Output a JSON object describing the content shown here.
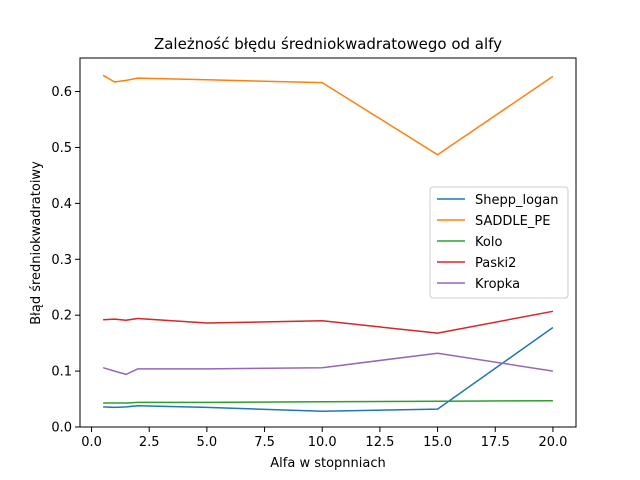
{
  "chart_data": {
    "type": "line",
    "title": "Zależność błędu średniokwadratowego od alfy",
    "xlabel": "Alfa w stopnniach",
    "ylabel": "Błąd średniokwadratoiwy",
    "xlim": [
      -0.5,
      21.0
    ],
    "ylim": [
      0.0,
      0.66
    ],
    "xticks": [
      0.0,
      2.5,
      5.0,
      7.5,
      10.0,
      12.5,
      15.0,
      17.5,
      20.0
    ],
    "xtick_labels": [
      "0.0",
      "2.5",
      "5.0",
      "7.5",
      "10.0",
      "12.5",
      "15.0",
      "17.5",
      "20.0"
    ],
    "yticks": [
      0.0,
      0.1,
      0.2,
      0.3,
      0.4,
      0.5,
      0.6
    ],
    "ytick_labels": [
      "0.0",
      "0.1",
      "0.2",
      "0.3",
      "0.4",
      "0.5",
      "0.6"
    ],
    "grid": false,
    "legend_position": "center-right",
    "x": [
      0.5,
      1.0,
      1.5,
      2.0,
      5.0,
      10.0,
      15.0,
      20.0
    ],
    "series": [
      {
        "name": "Shepp_logan",
        "color": "#1f77b4",
        "values": [
          0.036,
          0.035,
          0.036,
          0.038,
          0.035,
          0.028,
          0.032,
          0.178
        ]
      },
      {
        "name": "SADDLE_PE",
        "color": "#ff7f0e",
        "values": [
          0.629,
          0.617,
          0.62,
          0.624,
          0.621,
          0.616,
          0.487,
          0.627
        ]
      },
      {
        "name": "Kolo",
        "color": "#2ca02c",
        "values": [
          0.043,
          0.043,
          0.043,
          0.044,
          0.044,
          0.045,
          0.046,
          0.047
        ]
      },
      {
        "name": "Paski2",
        "color": "#d62728",
        "values": [
          0.192,
          0.193,
          0.191,
          0.194,
          0.186,
          0.19,
          0.168,
          0.207
        ]
      },
      {
        "name": "Kropka",
        "color": "#9467bd",
        "values": [
          0.106,
          0.1,
          0.094,
          0.104,
          0.104,
          0.106,
          0.132,
          0.1
        ]
      }
    ]
  }
}
